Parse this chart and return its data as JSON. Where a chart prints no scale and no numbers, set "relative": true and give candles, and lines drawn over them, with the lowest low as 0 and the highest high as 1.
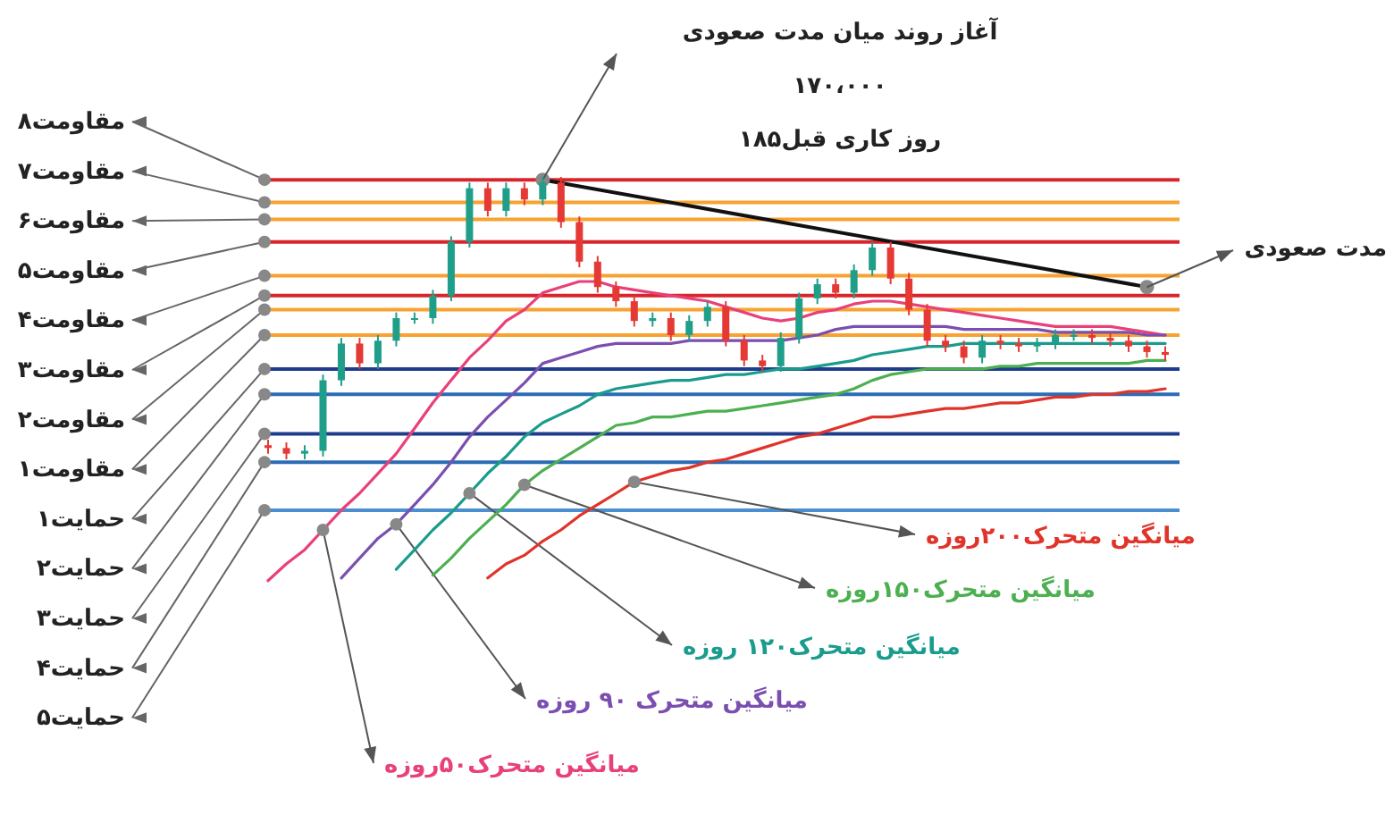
{
  "chart_data": {
    "type": "candlestick",
    "relative": true,
    "categories": [
      null,
      null,
      null,
      null,
      null,
      null,
      null,
      null,
      null,
      null,
      null,
      null,
      null,
      null,
      null,
      null,
      null,
      null,
      null,
      null,
      null,
      null,
      null,
      null,
      null,
      null,
      null,
      null,
      null,
      null,
      null,
      null,
      null,
      null,
      null,
      null,
      null,
      null,
      null,
      null,
      null,
      null,
      null,
      null,
      null,
      null,
      null,
      null,
      null,
      null
    ],
    "ohlc": [
      [
        0.05,
        0.07,
        0.02,
        0.04
      ],
      [
        0.04,
        0.06,
        0.0,
        0.02
      ],
      [
        0.02,
        0.05,
        0.0,
        0.03
      ],
      [
        0.03,
        0.3,
        0.01,
        0.28
      ],
      [
        0.28,
        0.43,
        0.26,
        0.41
      ],
      [
        0.41,
        0.43,
        0.32,
        0.34
      ],
      [
        0.34,
        0.44,
        0.32,
        0.42
      ],
      [
        0.42,
        0.52,
        0.4,
        0.5
      ],
      [
        0.5,
        0.52,
        0.48,
        0.5
      ],
      [
        0.5,
        0.6,
        0.48,
        0.58
      ],
      [
        0.58,
        0.79,
        0.56,
        0.77
      ],
      [
        0.77,
        0.98,
        0.75,
        0.96
      ],
      [
        0.96,
        0.98,
        0.86,
        0.88
      ],
      [
        0.88,
        0.98,
        0.86,
        0.96
      ],
      [
        0.96,
        0.98,
        0.9,
        0.92
      ],
      [
        0.92,
        1.0,
        0.9,
        0.98
      ],
      [
        0.98,
        1.0,
        0.82,
        0.84
      ],
      [
        0.84,
        0.86,
        0.68,
        0.7
      ],
      [
        0.7,
        0.72,
        0.59,
        0.61
      ],
      [
        0.61,
        0.63,
        0.54,
        0.56
      ],
      [
        0.56,
        0.58,
        0.47,
        0.49
      ],
      [
        0.49,
        0.52,
        0.47,
        0.5
      ],
      [
        0.5,
        0.52,
        0.42,
        0.44
      ],
      [
        0.44,
        0.51,
        0.42,
        0.49
      ],
      [
        0.49,
        0.56,
        0.47,
        0.54
      ],
      [
        0.54,
        0.56,
        0.4,
        0.42
      ],
      [
        0.42,
        0.44,
        0.33,
        0.35
      ],
      [
        0.35,
        0.37,
        0.31,
        0.33
      ],
      [
        0.33,
        0.45,
        0.31,
        0.43
      ],
      [
        0.43,
        0.59,
        0.41,
        0.57
      ],
      [
        0.57,
        0.64,
        0.55,
        0.62
      ],
      [
        0.62,
        0.64,
        0.57,
        0.59
      ],
      [
        0.59,
        0.69,
        0.57,
        0.67
      ],
      [
        0.67,
        0.77,
        0.65,
        0.75
      ],
      [
        0.75,
        0.77,
        0.62,
        0.64
      ],
      [
        0.64,
        0.66,
        0.51,
        0.53
      ],
      [
        0.53,
        0.55,
        0.4,
        0.42
      ],
      [
        0.42,
        0.44,
        0.38,
        0.4
      ],
      [
        0.4,
        0.42,
        0.34,
        0.36
      ],
      [
        0.36,
        0.44,
        0.34,
        0.42
      ],
      [
        0.42,
        0.44,
        0.39,
        0.41
      ],
      [
        0.41,
        0.43,
        0.38,
        0.4
      ],
      [
        0.4,
        0.43,
        0.38,
        0.41
      ],
      [
        0.41,
        0.46,
        0.39,
        0.44
      ],
      [
        0.44,
        0.46,
        0.42,
        0.44
      ],
      [
        0.44,
        0.46,
        0.41,
        0.43
      ],
      [
        0.43,
        0.45,
        0.4,
        0.42
      ],
      [
        0.42,
        0.44,
        0.38,
        0.4
      ],
      [
        0.4,
        0.42,
        0.36,
        0.38
      ],
      [
        0.38,
        0.4,
        0.35,
        0.37
      ]
    ],
    "series": [
      {
        "type": "line",
        "name": "میانگین متحرک۵۰روزه",
        "color": "#e8417a",
        "values": [
          -0.43,
          -0.37,
          -0.32,
          -0.25,
          -0.18,
          -0.12,
          -0.05,
          0.02,
          0.11,
          0.2,
          0.28,
          0.36,
          0.42,
          0.49,
          0.53,
          0.59,
          0.61,
          0.63,
          0.63,
          0.61,
          0.6,
          0.59,
          0.58,
          0.57,
          0.56,
          0.54,
          0.52,
          0.5,
          0.49,
          0.5,
          0.52,
          0.53,
          0.55,
          0.56,
          0.56,
          0.55,
          0.54,
          0.53,
          0.52,
          0.51,
          0.5,
          0.49,
          0.48,
          0.47,
          0.47,
          0.47,
          0.47,
          0.46,
          0.45,
          0.44
        ]
      },
      {
        "type": "line",
        "name": "میانگین متحرک ۹۰ روزه",
        "color": "#7b4fb0",
        "values": [
          null,
          null,
          null,
          null,
          -0.42,
          -0.35,
          -0.28,
          -0.23,
          -0.16,
          -0.09,
          -0.01,
          0.08,
          0.15,
          0.21,
          0.27,
          0.34,
          0.36,
          0.38,
          0.4,
          0.41,
          0.41,
          0.41,
          0.41,
          0.42,
          0.42,
          0.42,
          0.42,
          0.42,
          0.42,
          0.43,
          0.44,
          0.46,
          0.47,
          0.47,
          0.47,
          0.47,
          0.47,
          0.47,
          0.46,
          0.46,
          0.46,
          0.46,
          0.46,
          0.45,
          0.45,
          0.45,
          0.45,
          0.45,
          0.44,
          0.44
        ]
      },
      {
        "type": "line",
        "name": "میانگین متحرک۱۲۰ روزه",
        "color": "#1a9c8c",
        "values": [
          null,
          null,
          null,
          null,
          null,
          null,
          null,
          -0.39,
          -0.32,
          -0.25,
          -0.19,
          -0.12,
          -0.05,
          0.01,
          0.08,
          0.13,
          0.16,
          0.19,
          0.23,
          0.25,
          0.26,
          0.27,
          0.28,
          0.28,
          0.29,
          0.3,
          0.3,
          0.31,
          0.32,
          0.32,
          0.33,
          0.34,
          0.35,
          0.37,
          0.38,
          0.39,
          0.4,
          0.4,
          0.41,
          0.41,
          0.41,
          0.41,
          0.41,
          0.41,
          0.41,
          0.41,
          0.41,
          0.41,
          0.41,
          0.41
        ]
      },
      {
        "type": "line",
        "name": "میانگین متحرک۱۵۰روزه",
        "color": "#4caf50",
        "values": [
          null,
          null,
          null,
          null,
          null,
          null,
          null,
          null,
          null,
          -0.41,
          -0.35,
          -0.28,
          -0.22,
          -0.16,
          -0.09,
          -0.04,
          0.0,
          0.04,
          0.08,
          0.12,
          0.13,
          0.15,
          0.15,
          0.16,
          0.17,
          0.17,
          0.18,
          0.19,
          0.2,
          0.21,
          0.22,
          0.23,
          0.25,
          0.28,
          0.3,
          0.31,
          0.32,
          0.32,
          0.32,
          0.32,
          0.33,
          0.33,
          0.34,
          0.34,
          0.34,
          0.34,
          0.34,
          0.34,
          0.35,
          0.35
        ]
      },
      {
        "type": "line",
        "name": "میانگین متحرک۲۰۰روزه",
        "color": "#e0342a",
        "values": [
          null,
          null,
          null,
          null,
          null,
          null,
          null,
          null,
          null,
          null,
          null,
          null,
          -0.42,
          -0.37,
          -0.34,
          -0.29,
          -0.25,
          -0.2,
          -0.16,
          -0.12,
          -0.08,
          -0.06,
          -0.04,
          -0.03,
          -0.01,
          0.0,
          0.02,
          0.04,
          0.06,
          0.08,
          0.09,
          0.11,
          0.13,
          0.15,
          0.15,
          0.16,
          0.17,
          0.18,
          0.18,
          0.19,
          0.2,
          0.2,
          0.21,
          0.22,
          0.22,
          0.23,
          0.23,
          0.24,
          0.24,
          0.25
        ]
      },
      {
        "type": "line",
        "color": "#111111",
        "marker": "circle",
        "values": [
          null,
          null,
          null,
          null,
          null,
          null,
          null,
          null,
          null,
          null,
          null,
          null,
          null,
          null,
          null,
          0.99,
          null,
          null,
          null,
          null,
          null,
          null,
          null,
          null,
          null,
          null,
          null,
          null,
          null,
          null,
          null,
          null,
          null,
          null,
          null,
          null,
          null,
          null,
          null,
          null,
          null,
          null,
          null,
          null,
          null,
          null,
          null,
          null,
          0.61,
          null
        ]
      }
    ],
    "ref_lines": [
      {
        "axis": "y",
        "value": 0.99,
        "label": "مقاومت۸",
        "color": "#d7262b"
      },
      {
        "axis": "y",
        "value": 0.91,
        "label": "مقاومت۷",
        "color": "#f7a231"
      },
      {
        "axis": "y",
        "value": 0.85,
        "label": "مقاومت۶",
        "color": "#f7a231"
      },
      {
        "axis": "y",
        "value": 0.77,
        "label": "مقاومت۵",
        "color": "#d7262b"
      },
      {
        "axis": "y",
        "value": 0.65,
        "label": "مقاومت۴",
        "color": "#f7a231"
      },
      {
        "axis": "y",
        "value": 0.58,
        "label": "مقاومت۳",
        "color": "#d7262b"
      },
      {
        "axis": "y",
        "value": 0.53,
        "label": "مقاومت۲",
        "color": "#f7a231"
      },
      {
        "axis": "y",
        "value": 0.44,
        "label": "مقاومت۱",
        "color": "#f7a231"
      },
      {
        "axis": "y",
        "value": 0.32,
        "label": "حمایت۱",
        "color": "#1f3d8c"
      },
      {
        "axis": "y",
        "value": 0.23,
        "label": "حمایت۲",
        "color": "#2b6cb5"
      },
      {
        "axis": "y",
        "value": 0.09,
        "label": "حمایت۳",
        "color": "#1f3d8c"
      },
      {
        "axis": "y",
        "value": -0.01,
        "label": "حمایت۴",
        "color": "#2b6cb5"
      },
      {
        "axis": "y",
        "value": -0.18,
        "label": "حمایت۵",
        "color": "#4a90d0"
      }
    ],
    "annotations": [
      {
        "text": "آغاز روند میان مدت صعودی\n۱۷۰،۰۰۰\n۱۸۵روز کاری قبل",
        "y": 0.99
      },
      "مدت صعودی"
    ]
  }
}
